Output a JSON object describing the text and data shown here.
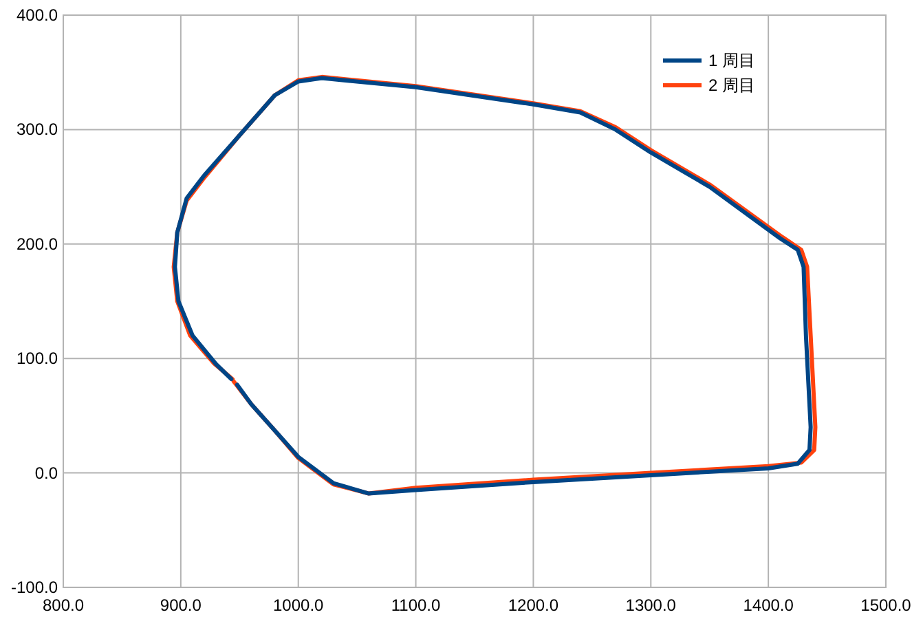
{
  "chart_data": {
    "type": "line",
    "xlim": [
      800,
      1500
    ],
    "ylim": [
      -100,
      400
    ],
    "xticks": [
      {
        "value": 800,
        "label": "800.0"
      },
      {
        "value": 900,
        "label": "900.0"
      },
      {
        "value": 1000,
        "label": "1000.0"
      },
      {
        "value": 1100,
        "label": "1100.0"
      },
      {
        "value": 1200,
        "label": "1200.0"
      },
      {
        "value": 1300,
        "label": "1300.0"
      },
      {
        "value": 1400,
        "label": "1400.0"
      },
      {
        "value": 1500,
        "label": "1500.0"
      }
    ],
    "yticks": [
      {
        "value": -100,
        "label": "-100.0"
      },
      {
        "value": 0,
        "label": "0.0"
      },
      {
        "value": 100,
        "label": "100.0"
      },
      {
        "value": 200,
        "label": "200.0"
      },
      {
        "value": 300,
        "label": "300.0"
      },
      {
        "value": 400,
        "label": "400.0"
      }
    ],
    "grid": true,
    "legend": "top right",
    "marker": "none",
    "line_style": "solid",
    "series": [
      {
        "name": "2 周目",
        "color": "#ff420e",
        "x": [
          945,
          960,
          980,
          1000,
          1030,
          1060,
          1100,
          1200,
          1300,
          1400,
          1428,
          1439,
          1440,
          1436,
          1433,
          1428,
          1412,
          1350,
          1300,
          1270,
          1240,
          1200,
          1100,
          1020,
          1000,
          980,
          950,
          920,
          905,
          897,
          894,
          897,
          908,
          928,
          944
        ],
        "values": [
          80,
          60,
          37,
          13,
          -10,
          -18,
          -13,
          -6,
          0,
          6,
          9,
          20,
          40,
          120,
          180,
          195,
          206,
          252,
          282,
          302,
          316,
          323,
          338,
          346,
          343,
          330,
          295,
          258,
          238,
          210,
          180,
          150,
          120,
          96,
          82
        ]
      },
      {
        "name": "1 周目",
        "color": "#004586",
        "x": [
          948,
          960,
          980,
          1000,
          1030,
          1060,
          1100,
          1200,
          1300,
          1400,
          1425,
          1435,
          1436,
          1432,
          1430,
          1425,
          1410,
          1350,
          1300,
          1270,
          1240,
          1200,
          1100,
          1020,
          1000,
          980,
          950,
          920,
          905,
          897,
          895,
          898,
          910,
          930,
          943
        ],
        "values": [
          77,
          60,
          37,
          14,
          -9,
          -18,
          -15,
          -8,
          -2,
          4,
          8,
          20,
          40,
          120,
          180,
          195,
          205,
          250,
          280,
          300,
          315,
          322,
          337,
          345,
          342,
          330,
          295,
          260,
          240,
          210,
          180,
          150,
          120,
          95,
          82
        ]
      }
    ]
  }
}
